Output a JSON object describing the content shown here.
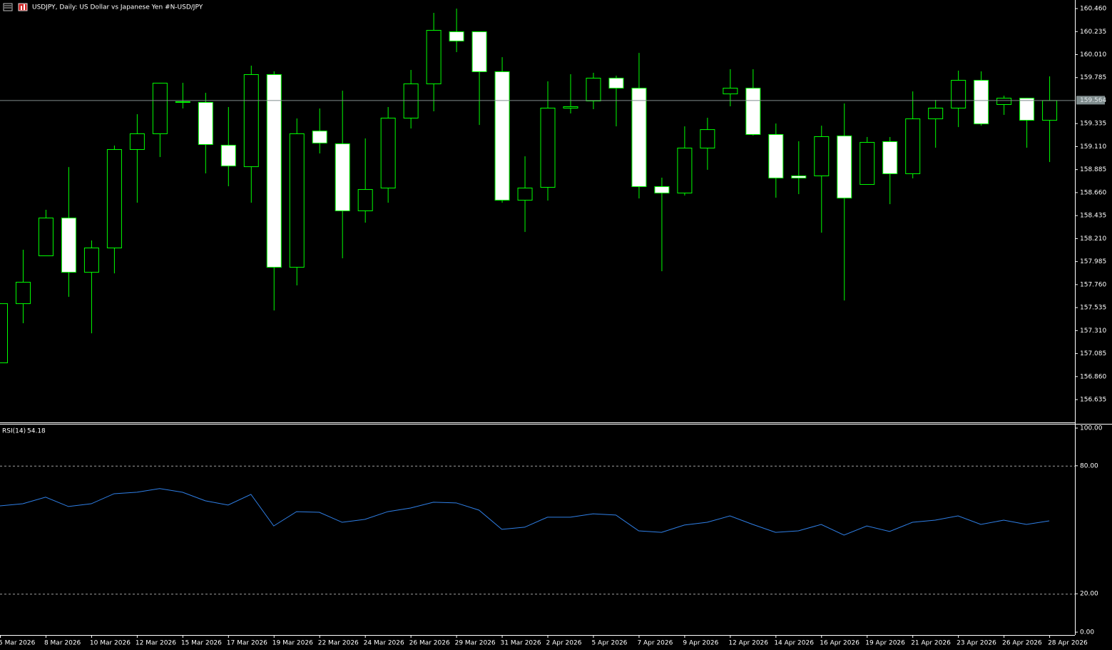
{
  "chart_data": [
    {
      "type": "candlestick",
      "title": "USDJPY, Daily:  US Dollar vs  Japanese Yen #N-USD/JPY",
      "categories": [
        "5 Mar 2026",
        null,
        "8 Mar 2026",
        null,
        "10 Mar 2026",
        null,
        "12 Mar 2026",
        null,
        "15 Mar 2026",
        null,
        "17 Mar 2026",
        null,
        "19 Mar 2026",
        null,
        "22 Mar 2026",
        null,
        "24 Mar 2026",
        null,
        "26 Mar 2026",
        null,
        "29 Mar 2026",
        null,
        "31 Mar 2026",
        null,
        "2 Apr 2026",
        null,
        "5 Apr 2026",
        null,
        "7 Apr 2026",
        null,
        "9 Apr 2026",
        null,
        "12 Apr 2026",
        null,
        "14 Apr 2026",
        null,
        "16 Apr 2026",
        null,
        "19 Apr 2026",
        null,
        "21 Apr 2026",
        null,
        "23 Apr 2026",
        null,
        "26 Apr 2026",
        null,
        "28 Apr 2026"
      ],
      "open": [
        156.998,
        157.577,
        158.045,
        158.415,
        157.884,
        158.122,
        159.085,
        159.239,
        159.546,
        159.546,
        159.127,
        158.917,
        159.818,
        157.933,
        159.266,
        159.141,
        158.485,
        158.708,
        159.392,
        159.727,
        160.237,
        160.237,
        159.846,
        158.589,
        158.715,
        159.49,
        159.56,
        159.783,
        159.685,
        158.722,
        158.659,
        159.099,
        159.629,
        159.685,
        159.232,
        158.827,
        158.827,
        159.218,
        158.743,
        159.162,
        158.848,
        159.385,
        159.49,
        159.762,
        159.525,
        159.587,
        159.371
      ],
      "high": [
        157.577,
        158.101,
        158.492,
        158.91,
        158.192,
        159.12,
        159.427,
        159.734,
        159.734,
        159.636,
        159.497,
        159.902,
        159.846,
        159.385,
        159.483,
        159.657,
        159.19,
        159.497,
        159.86,
        160.418,
        160.46,
        160.237,
        159.985,
        159.015,
        159.748,
        159.818,
        159.832,
        159.804,
        160.027,
        158.806,
        159.308,
        159.392,
        159.867,
        159.867,
        159.336,
        159.162,
        159.315,
        159.532,
        159.204,
        159.204,
        159.65,
        159.567,
        159.853,
        159.846,
        159.608,
        159.587,
        159.797
      ],
      "low": [
        156.998,
        157.382,
        158.045,
        157.64,
        157.284,
        157.87,
        158.561,
        159.008,
        159.483,
        158.848,
        158.722,
        158.561,
        157.507,
        157.752,
        159.043,
        158.017,
        158.366,
        158.561,
        159.287,
        159.455,
        160.034,
        159.322,
        158.561,
        158.275,
        158.582,
        159.434,
        159.476,
        159.308,
        158.603,
        157.891,
        158.631,
        158.883,
        159.504,
        159.218,
        158.61,
        158.645,
        158.268,
        157.605,
        158.743,
        158.547,
        158.799,
        159.099,
        159.301,
        159.315,
        159.42,
        159.099,
        158.959
      ],
      "close": [
        157.577,
        157.787,
        158.415,
        157.884,
        158.122,
        159.085,
        159.239,
        159.734,
        159.553,
        159.134,
        158.924,
        159.818,
        157.933,
        159.239,
        159.148,
        158.485,
        158.694,
        159.392,
        159.727,
        160.251,
        160.146,
        159.846,
        158.589,
        158.708,
        159.49,
        159.504,
        159.783,
        159.685,
        158.722,
        158.659,
        159.099,
        159.28,
        159.685,
        159.232,
        158.806,
        158.806,
        159.211,
        158.61,
        159.155,
        158.848,
        159.385,
        159.49,
        159.762,
        159.336,
        159.587,
        159.371,
        159.564
      ],
      "up_color": "#000000",
      "down_color": "#ffffff",
      "outline_color": "#00ff00",
      "price_line_color": "#7f8c8d",
      "ylim": [
        156.412,
        160.544
      ],
      "yticks": [
        {
          "value": 160.46,
          "label": "160.460"
        },
        160.235,
        {
          "value": 160.01,
          "label": "160.010"
        },
        159.785,
        159.335,
        {
          "value": 159.11,
          "label": "159.110"
        },
        158.885,
        {
          "value": 158.66,
          "label": "158.660"
        },
        158.435,
        {
          "value": 158.21,
          "label": "158.210"
        },
        157.985,
        {
          "value": 157.76,
          "label": "157.760"
        },
        157.535,
        {
          "value": 157.31,
          "label": "157.310"
        },
        157.085,
        {
          "value": 156.86,
          "label": "156.860"
        },
        156.635
      ]
    },
    {
      "type": "line",
      "title": "RSI(14)",
      "values": [
        61.2,
        62.2,
        65.3,
        60.9,
        62.2,
        66.9,
        67.6,
        69.3,
        67.6,
        63.6,
        61.6,
        66.6,
        51.8,
        58.5,
        58.2,
        53.5,
        54.9,
        58.5,
        60.2,
        62.9,
        62.6,
        59.2,
        50.2,
        51.2,
        55.9,
        55.9,
        57.5,
        56.9,
        49.5,
        48.8,
        52.2,
        53.5,
        56.5,
        52.5,
        48.8,
        49.5,
        52.5,
        47.5,
        51.8,
        49.2,
        53.5,
        54.5,
        56.5,
        52.5,
        54.5,
        52.5,
        54.18
      ],
      "color": "#2f7fe6",
      "ylim": [
        0,
        100
      ],
      "yticks": [
        {
          "value": 100,
          "label": "100.00"
        },
        {
          "value": 80,
          "label": "80.00"
        },
        {
          "value": 20,
          "label": "20.00"
        },
        {
          "value": 0,
          "label": "0.00"
        }
      ],
      "levels": [
        80,
        20
      ]
    }
  ]
}
